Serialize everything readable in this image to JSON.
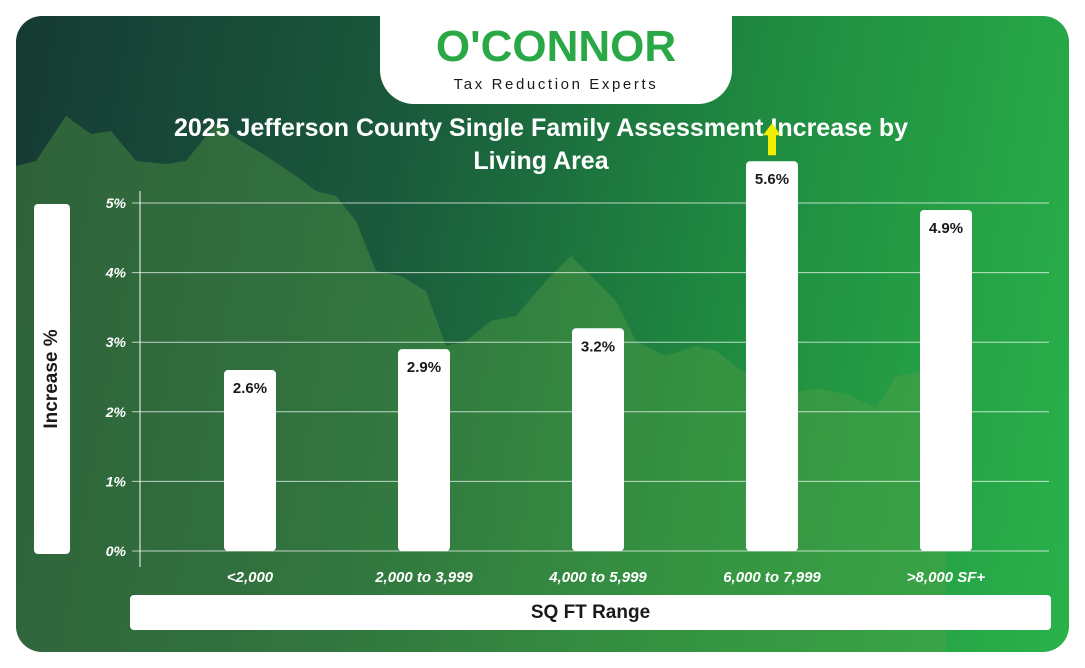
{
  "brand": {
    "name": "O'CONNOR",
    "tagline": "Tax Reduction Experts",
    "accent_color": "#2aa846"
  },
  "chart_data": {
    "type": "bar",
    "title": "2025 Jefferson County Single Family Assessment Increase by Living Area",
    "xlabel": "SQ FT Range",
    "ylabel": "Increase %",
    "categories": [
      "<2,000",
      "2,000 to 3,999",
      "4,000 to 5,999",
      "6,000 to 7,999",
      ">8,000 SF+"
    ],
    "values": [
      2.6,
      2.9,
      3.2,
      5.6,
      4.9
    ],
    "value_labels": [
      "2.6%",
      "2.9%",
      "3.2%",
      "5.6%",
      "4.9%"
    ],
    "ylim": [
      0,
      5
    ],
    "yticks": [
      0,
      1,
      2,
      3,
      4,
      5
    ],
    "ytick_labels": [
      "0%",
      "1%",
      "2%",
      "3%",
      "4%",
      "5%"
    ],
    "grid": true,
    "legend": "none",
    "bar_color": "#ffffff",
    "highlight_marker": {
      "category": "6,000 to 7,999",
      "icon": "up-arrow-icon",
      "color": "#f2ef00"
    }
  }
}
